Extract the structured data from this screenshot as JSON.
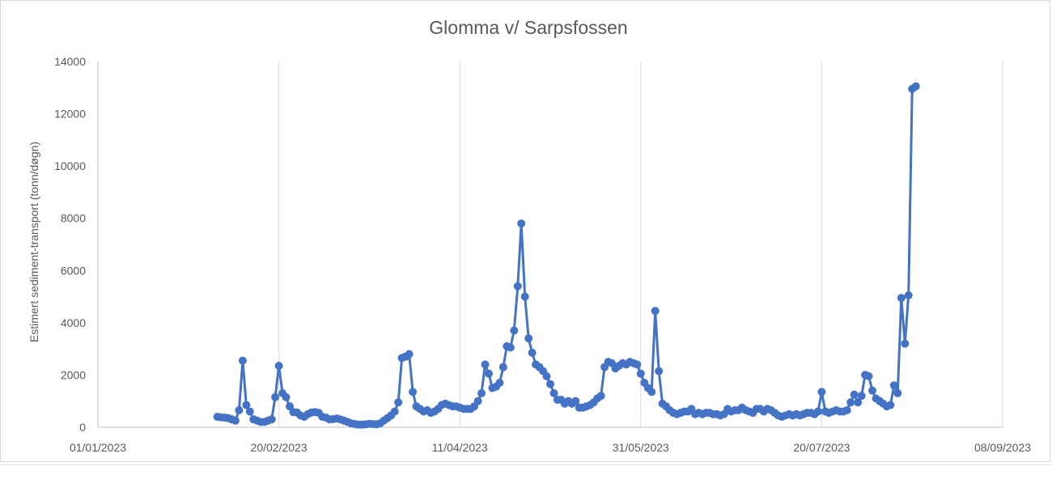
{
  "chart_data": {
    "type": "line",
    "title": "Glomma v/ Sarpsfossen",
    "xlabel": "",
    "ylabel": "Estimert sediment-transport (tonn/døgn)",
    "x_start": "01/01/2023",
    "x_end": "08/09/2023",
    "ylim": [
      0,
      14000
    ],
    "y_ticks": [
      0,
      2000,
      4000,
      6000,
      8000,
      10000,
      12000,
      14000
    ],
    "x_ticks": [
      "01/01/2023",
      "20/02/2023",
      "11/04/2023",
      "31/05/2023",
      "20/07/2023",
      "08/09/2023"
    ],
    "grid": "vertical",
    "legend": "none",
    "color": "#4472c4",
    "series": [
      {
        "points": [
          [
            "03/02/2023",
            400
          ],
          [
            "04/02/2023",
            380
          ],
          [
            "05/02/2023",
            370
          ],
          [
            "06/02/2023",
            350
          ],
          [
            "07/02/2023",
            300
          ],
          [
            "08/02/2023",
            250
          ],
          [
            "09/02/2023",
            650
          ],
          [
            "10/02/2023",
            2550
          ],
          [
            "11/02/2023",
            850
          ],
          [
            "12/02/2023",
            600
          ],
          [
            "13/02/2023",
            300
          ],
          [
            "14/02/2023",
            250
          ],
          [
            "15/02/2023",
            200
          ],
          [
            "16/02/2023",
            200
          ],
          [
            "17/02/2023",
            250
          ],
          [
            "18/02/2023",
            300
          ],
          [
            "19/02/2023",
            1150
          ],
          [
            "20/02/2023",
            2350
          ],
          [
            "21/02/2023",
            1300
          ],
          [
            "22/02/2023",
            1150
          ],
          [
            "23/02/2023",
            800
          ],
          [
            "24/02/2023",
            580
          ],
          [
            "25/02/2023",
            560
          ],
          [
            "26/02/2023",
            450
          ],
          [
            "27/02/2023",
            400
          ],
          [
            "28/02/2023",
            500
          ],
          [
            "01/03/2023",
            560
          ],
          [
            "02/03/2023",
            580
          ],
          [
            "03/03/2023",
            550
          ],
          [
            "04/03/2023",
            400
          ],
          [
            "05/03/2023",
            370
          ],
          [
            "06/03/2023",
            300
          ],
          [
            "07/03/2023",
            310
          ],
          [
            "08/03/2023",
            330
          ],
          [
            "09/03/2023",
            300
          ],
          [
            "10/03/2023",
            250
          ],
          [
            "11/03/2023",
            200
          ],
          [
            "12/03/2023",
            150
          ],
          [
            "13/03/2023",
            120
          ],
          [
            "14/03/2023",
            100
          ],
          [
            "15/03/2023",
            100
          ],
          [
            "16/03/2023",
            110
          ],
          [
            "17/03/2023",
            130
          ],
          [
            "18/03/2023",
            120
          ],
          [
            "19/03/2023",
            110
          ],
          [
            "20/03/2023",
            150
          ],
          [
            "21/03/2023",
            250
          ],
          [
            "22/03/2023",
            350
          ],
          [
            "23/03/2023",
            450
          ],
          [
            "24/03/2023",
            600
          ],
          [
            "25/03/2023",
            950
          ],
          [
            "26/03/2023",
            2650
          ],
          [
            "27/03/2023",
            2700
          ],
          [
            "28/03/2023",
            2800
          ],
          [
            "29/03/2023",
            1350
          ],
          [
            "30/03/2023",
            800
          ],
          [
            "31/03/2023",
            700
          ],
          [
            "01/04/2023",
            600
          ],
          [
            "02/04/2023",
            650
          ],
          [
            "03/04/2023",
            550
          ],
          [
            "04/04/2023",
            600
          ],
          [
            "05/04/2023",
            700
          ],
          [
            "06/04/2023",
            850
          ],
          [
            "07/04/2023",
            900
          ],
          [
            "08/04/2023",
            850
          ],
          [
            "09/04/2023",
            800
          ],
          [
            "10/04/2023",
            800
          ],
          [
            "11/04/2023",
            750
          ],
          [
            "12/04/2023",
            700
          ],
          [
            "13/04/2023",
            700
          ],
          [
            "14/04/2023",
            700
          ],
          [
            "15/04/2023",
            800
          ],
          [
            "16/04/2023",
            1000
          ],
          [
            "17/04/2023",
            1300
          ],
          [
            "18/04/2023",
            2400
          ],
          [
            "19/04/2023",
            2050
          ],
          [
            "20/04/2023",
            1500
          ],
          [
            "21/04/2023",
            1550
          ],
          [
            "22/04/2023",
            1700
          ],
          [
            "23/04/2023",
            2300
          ],
          [
            "24/04/2023",
            3100
          ],
          [
            "25/04/2023",
            3050
          ],
          [
            "26/04/2023",
            3700
          ],
          [
            "27/04/2023",
            5400
          ],
          [
            "28/04/2023",
            7800
          ],
          [
            "29/04/2023",
            5000
          ],
          [
            "30/04/2023",
            3400
          ],
          [
            "01/05/2023",
            2850
          ],
          [
            "02/05/2023",
            2400
          ],
          [
            "03/05/2023",
            2300
          ],
          [
            "04/05/2023",
            2150
          ],
          [
            "05/05/2023",
            1950
          ],
          [
            "06/05/2023",
            1650
          ],
          [
            "07/05/2023",
            1300
          ],
          [
            "08/05/2023",
            1050
          ],
          [
            "09/05/2023",
            1050
          ],
          [
            "10/05/2023",
            900
          ],
          [
            "11/05/2023",
            1000
          ],
          [
            "12/05/2023",
            900
          ],
          [
            "13/05/2023",
            1000
          ],
          [
            "14/05/2023",
            750
          ],
          [
            "15/05/2023",
            750
          ],
          [
            "16/05/2023",
            800
          ],
          [
            "17/05/2023",
            850
          ],
          [
            "18/05/2023",
            950
          ],
          [
            "19/05/2023",
            1100
          ],
          [
            "20/05/2023",
            1200
          ],
          [
            "21/05/2023",
            2300
          ],
          [
            "22/05/2023",
            2500
          ],
          [
            "23/05/2023",
            2450
          ],
          [
            "24/05/2023",
            2250
          ],
          [
            "25/05/2023",
            2350
          ],
          [
            "26/05/2023",
            2450
          ],
          [
            "27/05/2023",
            2400
          ],
          [
            "28/05/2023",
            2500
          ],
          [
            "29/05/2023",
            2450
          ],
          [
            "30/05/2023",
            2400
          ],
          [
            "31/05/2023",
            2050
          ],
          [
            "01/06/2023",
            1700
          ],
          [
            "02/06/2023",
            1500
          ],
          [
            "03/06/2023",
            1350
          ],
          [
            "04/06/2023",
            4450
          ],
          [
            "05/06/2023",
            2150
          ],
          [
            "06/06/2023",
            900
          ],
          [
            "07/06/2023",
            800
          ],
          [
            "08/06/2023",
            650
          ],
          [
            "09/06/2023",
            550
          ],
          [
            "10/06/2023",
            500
          ],
          [
            "11/06/2023",
            550
          ],
          [
            "12/06/2023",
            600
          ],
          [
            "13/06/2023",
            600
          ],
          [
            "14/06/2023",
            700
          ],
          [
            "15/06/2023",
            500
          ],
          [
            "16/06/2023",
            550
          ],
          [
            "17/06/2023",
            500
          ],
          [
            "18/06/2023",
            550
          ],
          [
            "19/06/2023",
            550
          ],
          [
            "20/06/2023",
            500
          ],
          [
            "21/06/2023",
            500
          ],
          [
            "22/06/2023",
            450
          ],
          [
            "23/06/2023",
            500
          ],
          [
            "24/06/2023",
            700
          ],
          [
            "25/06/2023",
            600
          ],
          [
            "26/06/2023",
            650
          ],
          [
            "27/06/2023",
            650
          ],
          [
            "28/06/2023",
            750
          ],
          [
            "29/06/2023",
            650
          ],
          [
            "30/06/2023",
            600
          ],
          [
            "01/07/2023",
            550
          ],
          [
            "02/07/2023",
            700
          ],
          [
            "03/07/2023",
            700
          ],
          [
            "04/07/2023",
            600
          ],
          [
            "05/07/2023",
            700
          ],
          [
            "06/07/2023",
            650
          ],
          [
            "07/07/2023",
            550
          ],
          [
            "08/07/2023",
            450
          ],
          [
            "09/07/2023",
            400
          ],
          [
            "10/07/2023",
            450
          ],
          [
            "11/07/2023",
            500
          ],
          [
            "12/07/2023",
            450
          ],
          [
            "13/07/2023",
            500
          ],
          [
            "14/07/2023",
            450
          ],
          [
            "15/07/2023",
            500
          ],
          [
            "16/07/2023",
            550
          ],
          [
            "17/07/2023",
            550
          ],
          [
            "18/07/2023",
            500
          ],
          [
            "19/07/2023",
            600
          ],
          [
            "20/07/2023",
            1350
          ],
          [
            "21/07/2023",
            600
          ],
          [
            "22/07/2023",
            550
          ],
          [
            "23/07/2023",
            600
          ],
          [
            "24/07/2023",
            650
          ],
          [
            "25/07/2023",
            600
          ],
          [
            "26/07/2023",
            600
          ],
          [
            "27/07/2023",
            650
          ],
          [
            "28/07/2023",
            950
          ],
          [
            "29/07/2023",
            1250
          ],
          [
            "30/07/2023",
            950
          ],
          [
            "31/07/2023",
            1200
          ],
          [
            "01/08/2023",
            2000
          ],
          [
            "02/08/2023",
            1950
          ],
          [
            "03/08/2023",
            1400
          ],
          [
            "04/08/2023",
            1100
          ],
          [
            "05/08/2023",
            1000
          ],
          [
            "06/08/2023",
            900
          ],
          [
            "07/08/2023",
            800
          ],
          [
            "08/08/2023",
            850
          ],
          [
            "09/08/2023",
            1600
          ],
          [
            "10/08/2023",
            1300
          ],
          [
            "11/08/2023",
            4950
          ],
          [
            "12/08/2023",
            3200
          ],
          [
            "13/08/2023",
            5050
          ],
          [
            "14/08/2023",
            12950
          ],
          [
            "15/08/2023",
            13050
          ]
        ]
      }
    ]
  }
}
